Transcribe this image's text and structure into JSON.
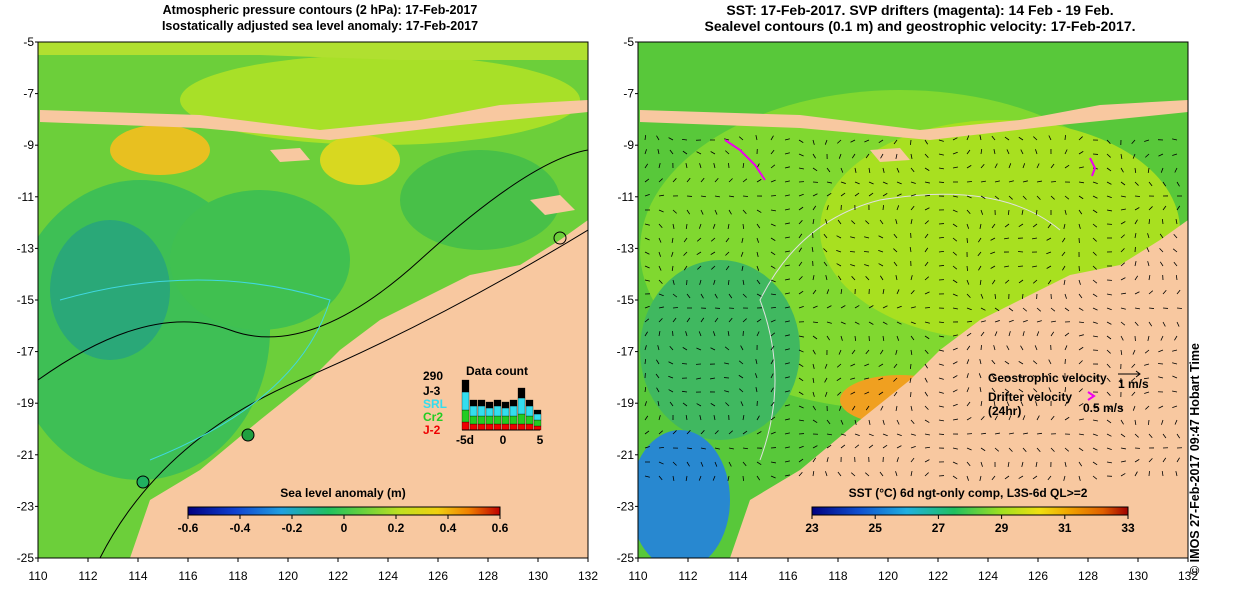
{
  "left_panel": {
    "title_line1": "Atmospheric pressure contours (2 hPa): 17-Feb-2017",
    "title_line2": "Isostatically adjusted sea level anomaly: 17-Feb-2017",
    "colorbar_title": "Sea level anomaly (m)",
    "colorbar_ticks": [
      "-0.6",
      "-0.4",
      "-0.2",
      "0",
      "0.2",
      "0.4",
      "0.6"
    ],
    "data_count": {
      "title": "Data count",
      "max_label": "290",
      "satellites": [
        {
          "name": "J-3",
          "color": "#000000"
        },
        {
          "name": "SRL",
          "color": "#33ddee"
        },
        {
          "name": "Cr2",
          "color": "#22cc22"
        },
        {
          "name": "J-2",
          "color": "#ee0000"
        }
      ],
      "x_ticks": [
        "-5d",
        "0",
        "5"
      ]
    }
  },
  "right_panel": {
    "title_line1": "SST: 17-Feb-2017. SVP drifters (magenta): 14 Feb - 19 Feb.",
    "title_line2": "Sealevel contours (0.1 m) and geostrophic velocity: 17-Feb-2017.",
    "legend_geo": "Geostrophic velocity",
    "legend_geo_value": "1 m/s",
    "legend_drifter": "Drifter velocity",
    "legend_drifter_sub": "(24hr)",
    "legend_drifter_value": "0.5 m/s",
    "colorbar_title": "SST (°C) 6d ngt-only comp, L3S-6d QL>=2",
    "colorbar_ticks": [
      "23",
      "25",
      "27",
      "29",
      "31",
      "33"
    ]
  },
  "axes": {
    "x_ticks": [
      "110",
      "112",
      "114",
      "116",
      "118",
      "120",
      "122",
      "124",
      "126",
      "128",
      "130",
      "132"
    ],
    "y_ticks": [
      "-5",
      "-7",
      "-9",
      "-11",
      "-13",
      "-15",
      "-17",
      "-19",
      "-21",
      "-23",
      "-25"
    ]
  },
  "side_label": "© IMOS 27-Feb-2017 09:47 Hobart Time",
  "colors": {
    "land": "#f8c8a0",
    "sla_colormap": [
      "#000080",
      "#1040d0",
      "#20a0e0",
      "#20c060",
      "#60d040",
      "#c0e020",
      "#f0d010",
      "#f08000",
      "#c00000"
    ],
    "sst_colormap": [
      "#000080",
      "#1050d0",
      "#20b0e0",
      "#20c060",
      "#a0e020",
      "#f0e010",
      "#f0a000",
      "#e06000",
      "#a00000"
    ]
  }
}
